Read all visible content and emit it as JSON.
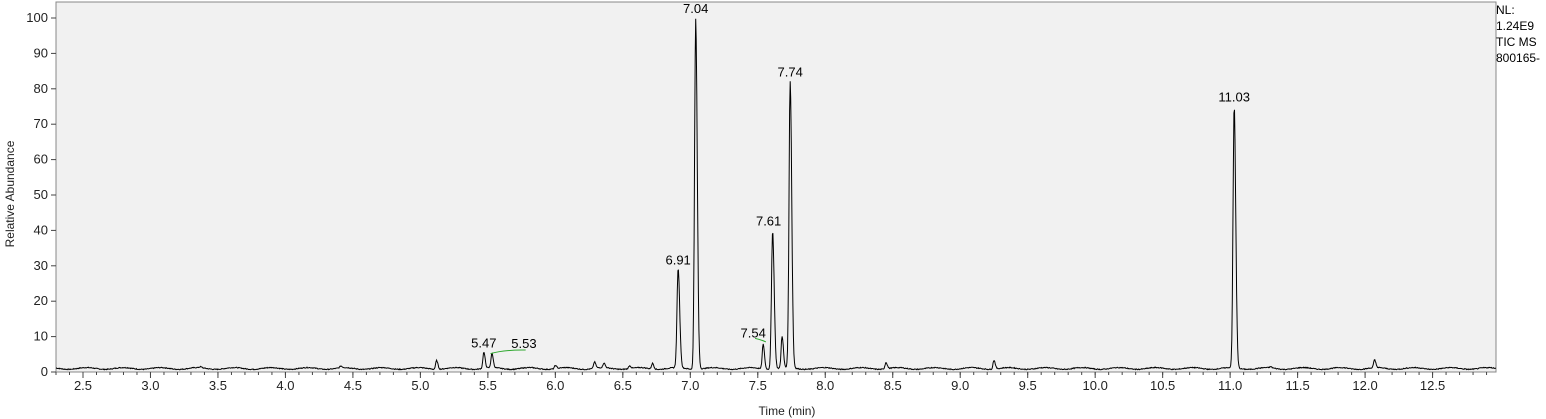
{
  "chart_data": {
    "type": "line",
    "xlabel": "Time (min)",
    "ylabel": "Relative Abundance",
    "xlim": [
      2.3,
      12.97
    ],
    "ylim": [
      0,
      100
    ],
    "x_ticks": [
      "2.5",
      "3.0",
      "3.5",
      "4.0",
      "4.5",
      "5.0",
      "5.5",
      "6.0",
      "6.5",
      "7.0",
      "7.5",
      "8.0",
      "8.5",
      "9.0",
      "9.5",
      "10.0",
      "10.5",
      "11.0",
      "11.5",
      "12.0",
      "12.5"
    ],
    "y_ticks": [
      "0",
      "10",
      "20",
      "30",
      "40",
      "50",
      "60",
      "70",
      "80",
      "90",
      "100"
    ],
    "grid": false,
    "peaks": [
      {
        "time": 5.47,
        "label": "5.47",
        "height": 5.5
      },
      {
        "time": 5.53,
        "label": "5.53",
        "height": 5.0
      },
      {
        "time": 6.91,
        "label": "6.91",
        "height": 29
      },
      {
        "time": 7.04,
        "label": "7.04",
        "height": 100
      },
      {
        "time": 7.54,
        "label": "7.54",
        "height": 8
      },
      {
        "time": 7.61,
        "label": "7.61",
        "height": 40
      },
      {
        "time": 7.74,
        "label": "7.74",
        "height": 82
      },
      {
        "time": 11.03,
        "label": "11.03",
        "height": 75
      }
    ],
    "minor_peaks": [
      {
        "time": 5.12,
        "height": 3.5
      },
      {
        "time": 6.29,
        "height": 2.8
      },
      {
        "time": 6.36,
        "height": 2.3
      },
      {
        "time": 6.55,
        "height": 1.8
      },
      {
        "time": 6.72,
        "height": 2.6
      },
      {
        "time": 7.68,
        "height": 10
      },
      {
        "time": 8.45,
        "height": 2.8
      },
      {
        "time": 9.25,
        "height": 3.5
      },
      {
        "time": 12.07,
        "height": 3.2
      },
      {
        "time": 3.37,
        "height": 1.3
      },
      {
        "time": 4.41,
        "height": 1.5
      },
      {
        "time": 6.0,
        "height": 1.9
      },
      {
        "time": 11.3,
        "height": 1.3
      }
    ],
    "baseline": 1.0,
    "line_color": "#000000",
    "marker_color": "#2ea82e"
  },
  "info": {
    "nl_label": "NL:",
    "nl_value": "1.24E9",
    "trace": "TIC MS",
    "file": "800165-"
  }
}
